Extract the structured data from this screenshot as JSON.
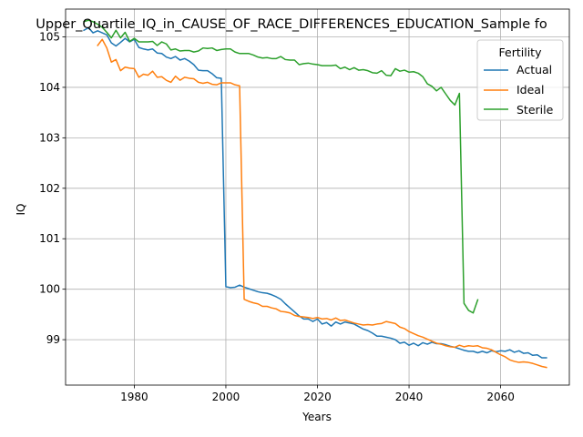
{
  "chart_data": {
    "type": "line",
    "title": "Upper_Quartile_IQ_in_CAUSE_OF_RACE_DIFFERENCES_EDUCATION_Sample fo",
    "xlabel": "Years",
    "ylabel": "IQ",
    "xlim": [
      1965,
      2075
    ],
    "ylim": [
      98.1,
      105.55
    ],
    "xticks": [
      1980,
      2000,
      2020,
      2040,
      2060
    ],
    "yticks": [
      99,
      100,
      101,
      102,
      103,
      104,
      105
    ],
    "grid": true,
    "legend": {
      "title": "Fertility",
      "placement": "top-right"
    },
    "series": [
      {
        "name": "Actual",
        "color": "#1f77b4",
        "x": [
          1969,
          1970,
          1971,
          1972,
          1973,
          1974,
          1975,
          1976,
          1977,
          1978,
          1979,
          1980,
          1981,
          1982,
          1983,
          1984,
          1985,
          1986,
          1987,
          1988,
          1989,
          1990,
          1991,
          1992,
          1993,
          1994,
          1995,
          1996,
          1997,
          1998,
          1999,
          2000,
          2001,
          2002,
          2003,
          2004,
          2005,
          2006,
          2007,
          2008,
          2009,
          2010,
          2011,
          2012,
          2013,
          2014,
          2015,
          2016,
          2017,
          2018,
          2019,
          2020,
          2021,
          2022,
          2023,
          2024,
          2025,
          2026,
          2027,
          2028,
          2029,
          2030,
          2031,
          2032,
          2033,
          2034,
          2035,
          2036,
          2037,
          2038,
          2039,
          2040,
          2041,
          2042,
          2043,
          2044,
          2045,
          2046,
          2047,
          2048,
          2049,
          2050,
          2051,
          2052,
          2053,
          2054,
          2055,
          2056,
          2057,
          2058,
          2059,
          2060,
          2061,
          2062,
          2063,
          2064,
          2065,
          2066,
          2067,
          2068,
          2069,
          2070
        ],
        "values": [
          105.13,
          105.18,
          105.08,
          105.12,
          105.08,
          105.04,
          104.88,
          104.82,
          104.89,
          104.97,
          104.9,
          104.95,
          104.79,
          104.76,
          104.74,
          104.76,
          104.68,
          104.67,
          104.6,
          104.57,
          104.61,
          104.54,
          104.57,
          104.52,
          104.45,
          104.34,
          104.33,
          104.33,
          104.27,
          104.19,
          104.18,
          100.05,
          100.03,
          100.04,
          100.08,
          100.04,
          100.01,
          99.98,
          99.95,
          99.93,
          99.92,
          99.89,
          99.85,
          99.8,
          99.71,
          99.63,
          99.55,
          99.47,
          99.41,
          99.41,
          99.36,
          99.41,
          99.31,
          99.34,
          99.27,
          99.35,
          99.31,
          99.35,
          99.33,
          99.31,
          99.26,
          99.21,
          99.18,
          99.13,
          99.07,
          99.07,
          99.05,
          99.03,
          99.0,
          98.93,
          98.95,
          98.89,
          98.93,
          98.88,
          98.94,
          98.91,
          98.95,
          98.92,
          98.92,
          98.9,
          98.87,
          98.85,
          98.82,
          98.79,
          98.77,
          98.77,
          98.74,
          98.77,
          98.74,
          98.78,
          98.76,
          98.78,
          98.77,
          98.8,
          98.75,
          98.78,
          98.73,
          98.74,
          98.69,
          98.7,
          98.64,
          98.64
        ]
      },
      {
        "name": "Ideal",
        "color": "#ff7f0e",
        "x": [
          1972,
          1973,
          1974,
          1975,
          1976,
          1977,
          1978,
          1979,
          1980,
          1981,
          1982,
          1983,
          1984,
          1985,
          1986,
          1987,
          1988,
          1989,
          1990,
          1991,
          1992,
          1993,
          1994,
          1995,
          1996,
          1997,
          1998,
          1999,
          2000,
          2001,
          2002,
          2003,
          2004,
          2005,
          2006,
          2007,
          2008,
          2009,
          2010,
          2011,
          2012,
          2013,
          2014,
          2015,
          2016,
          2017,
          2018,
          2019,
          2020,
          2021,
          2022,
          2023,
          2024,
          2025,
          2026,
          2027,
          2028,
          2029,
          2030,
          2031,
          2032,
          2033,
          2034,
          2035,
          2036,
          2037,
          2038,
          2039,
          2040,
          2041,
          2042,
          2043,
          2044,
          2045,
          2046,
          2047,
          2048,
          2049,
          2050,
          2051,
          2052,
          2053,
          2054,
          2055,
          2056,
          2057,
          2058,
          2059,
          2060,
          2061,
          2062,
          2063,
          2064,
          2065,
          2066,
          2067,
          2068,
          2069,
          2070
        ],
        "values": [
          104.83,
          104.95,
          104.78,
          104.5,
          104.55,
          104.33,
          104.4,
          104.38,
          104.37,
          104.2,
          104.26,
          104.24,
          104.32,
          104.2,
          104.21,
          104.14,
          104.1,
          104.22,
          104.14,
          104.2,
          104.18,
          104.17,
          104.1,
          104.08,
          104.1,
          104.06,
          104.05,
          104.09,
          104.09,
          104.09,
          104.05,
          104.03,
          99.8,
          99.76,
          99.73,
          99.71,
          99.66,
          99.66,
          99.63,
          99.61,
          99.56,
          99.55,
          99.53,
          99.48,
          99.46,
          99.45,
          99.44,
          99.42,
          99.44,
          99.41,
          99.42,
          99.39,
          99.43,
          99.38,
          99.39,
          99.36,
          99.33,
          99.31,
          99.29,
          99.3,
          99.29,
          99.31,
          99.32,
          99.36,
          99.34,
          99.32,
          99.25,
          99.22,
          99.16,
          99.12,
          99.08,
          99.05,
          99.01,
          98.97,
          98.93,
          98.91,
          98.88,
          98.86,
          98.85,
          98.89,
          98.86,
          98.88,
          98.87,
          98.88,
          98.84,
          98.83,
          98.8,
          98.75,
          98.7,
          98.66,
          98.6,
          98.57,
          98.55,
          98.56,
          98.55,
          98.53,
          98.5,
          98.47,
          98.45
        ]
      },
      {
        "name": "Sterile",
        "color": "#2ca02c",
        "x": [
          1969,
          1970,
          1971,
          1972,
          1973,
          1974,
          1975,
          1976,
          1977,
          1978,
          1979,
          1980,
          1981,
          1982,
          1983,
          1984,
          1985,
          1986,
          1987,
          1988,
          1989,
          1990,
          1991,
          1992,
          1993,
          1994,
          1995,
          1996,
          1997,
          1998,
          1999,
          2000,
          2001,
          2002,
          2003,
          2004,
          2005,
          2006,
          2007,
          2008,
          2009,
          2010,
          2011,
          2012,
          2013,
          2014,
          2015,
          2016,
          2017,
          2018,
          2019,
          2020,
          2021,
          2022,
          2023,
          2024,
          2025,
          2026,
          2027,
          2028,
          2029,
          2030,
          2031,
          2032,
          2033,
          2034,
          2035,
          2036,
          2037,
          2038,
          2039,
          2040,
          2041,
          2042,
          2043,
          2044,
          2045,
          2046,
          2047,
          2048,
          2049,
          2050,
          2051,
          2052,
          2053,
          2054,
          2055
        ],
        "values": [
          105.3,
          105.33,
          105.3,
          105.25,
          105.19,
          105.09,
          104.98,
          105.13,
          104.98,
          105.09,
          104.91,
          104.97,
          104.9,
          104.9,
          104.9,
          104.91,
          104.83,
          104.9,
          104.86,
          104.74,
          104.76,
          104.72,
          104.73,
          104.73,
          104.7,
          104.72,
          104.78,
          104.77,
          104.78,
          104.73,
          104.75,
          104.76,
          104.76,
          104.7,
          104.67,
          104.67,
          104.67,
          104.64,
          104.6,
          104.58,
          104.59,
          104.57,
          104.57,
          104.61,
          104.55,
          104.54,
          104.54,
          104.45,
          104.47,
          104.48,
          104.46,
          104.45,
          104.43,
          104.43,
          104.43,
          104.44,
          104.37,
          104.4,
          104.35,
          104.39,
          104.34,
          104.35,
          104.33,
          104.29,
          104.28,
          104.33,
          104.24,
          104.23,
          104.37,
          104.32,
          104.34,
          104.3,
          104.31,
          104.28,
          104.21,
          104.07,
          104.02,
          103.93,
          104.0,
          103.87,
          103.74,
          103.65,
          103.88,
          99.72,
          99.58,
          99.53,
          99.79
        ]
      }
    ]
  }
}
